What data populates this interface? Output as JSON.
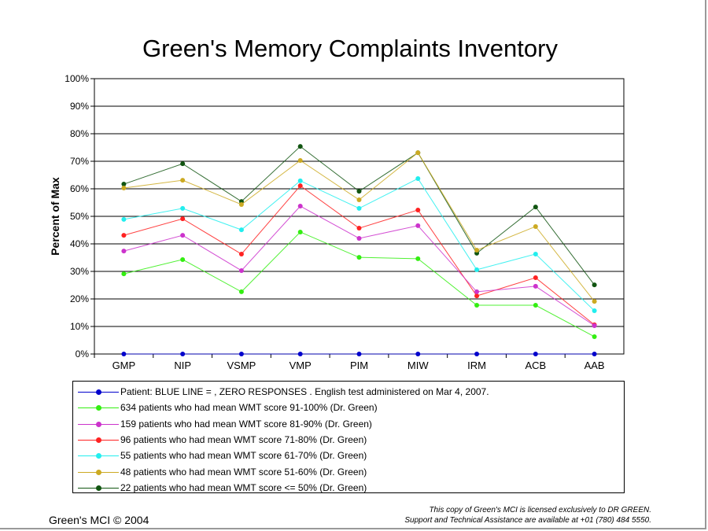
{
  "chart_data": {
    "type": "line",
    "title": "Green's Memory Complaints Inventory",
    "xlabel": "",
    "ylabel": "Percent of Max",
    "ylim": [
      0,
      100
    ],
    "yticks": [
      "0%",
      "10%",
      "20%",
      "30%",
      "40%",
      "50%",
      "60%",
      "70%",
      "80%",
      "90%",
      "100%"
    ],
    "categories": [
      "GMP",
      "NIP",
      "VSMP",
      "VMP",
      "PIM",
      "MIW",
      "IRM",
      "ACB",
      "AAB"
    ],
    "grid": true,
    "legend_position": "bottom",
    "series": [
      {
        "name": "Patient: BLUE LINE = , ZERO RESPONSES . English test administered on Mar 4, 2007.",
        "color": "#0000cc",
        "values": [
          0,
          0,
          0,
          0,
          0,
          0,
          0,
          0,
          0
        ]
      },
      {
        "name": "634 patients who had mean WMT score 91-100% (Dr. Green)",
        "color": "#33ee11",
        "values": [
          29.1,
          34.3,
          22.6,
          44.3,
          35.1,
          34.6,
          17.7,
          17.7,
          6.3
        ]
      },
      {
        "name": "159 patients who had mean WMT score 81-90% (Dr. Green)",
        "color": "#cc33cc",
        "values": [
          37.4,
          43.1,
          30.3,
          53.7,
          42.0,
          46.6,
          22.6,
          24.6,
          10.3
        ]
      },
      {
        "name": "96 patients who had mean WMT score 71-80% (Dr. Green)",
        "color": "#ff2222",
        "values": [
          43.1,
          49.1,
          36.3,
          61.1,
          45.7,
          52.3,
          21.1,
          27.7,
          10.6
        ]
      },
      {
        "name": "55 patients who had mean WMT score 61-70% (Dr. Green)",
        "color": "#22eeee",
        "values": [
          48.9,
          52.9,
          45.1,
          62.9,
          52.9,
          63.7,
          30.6,
          36.3,
          15.7
        ]
      },
      {
        "name": "48 patients who had mean WMT score 51-60% (Dr. Green)",
        "color": "#ccaa22",
        "values": [
          60.3,
          63.1,
          54.3,
          70.3,
          56.0,
          73.1,
          37.7,
          46.3,
          19.1
        ]
      },
      {
        "name": "22 patients who had mean WMT score <= 50% (Dr. Green)",
        "color": "#115511",
        "values": [
          61.7,
          69.1,
          55.4,
          75.4,
          59.1,
          73.1,
          36.6,
          53.4,
          25.1
        ]
      }
    ]
  },
  "footer": {
    "left": "Green's MCI © 2004",
    "license": "This copy of Green's MCI is licensed exclusively to DR GREEN.",
    "support": "Support and Technical Assistance are available at +01 (780) 484 5550."
  }
}
